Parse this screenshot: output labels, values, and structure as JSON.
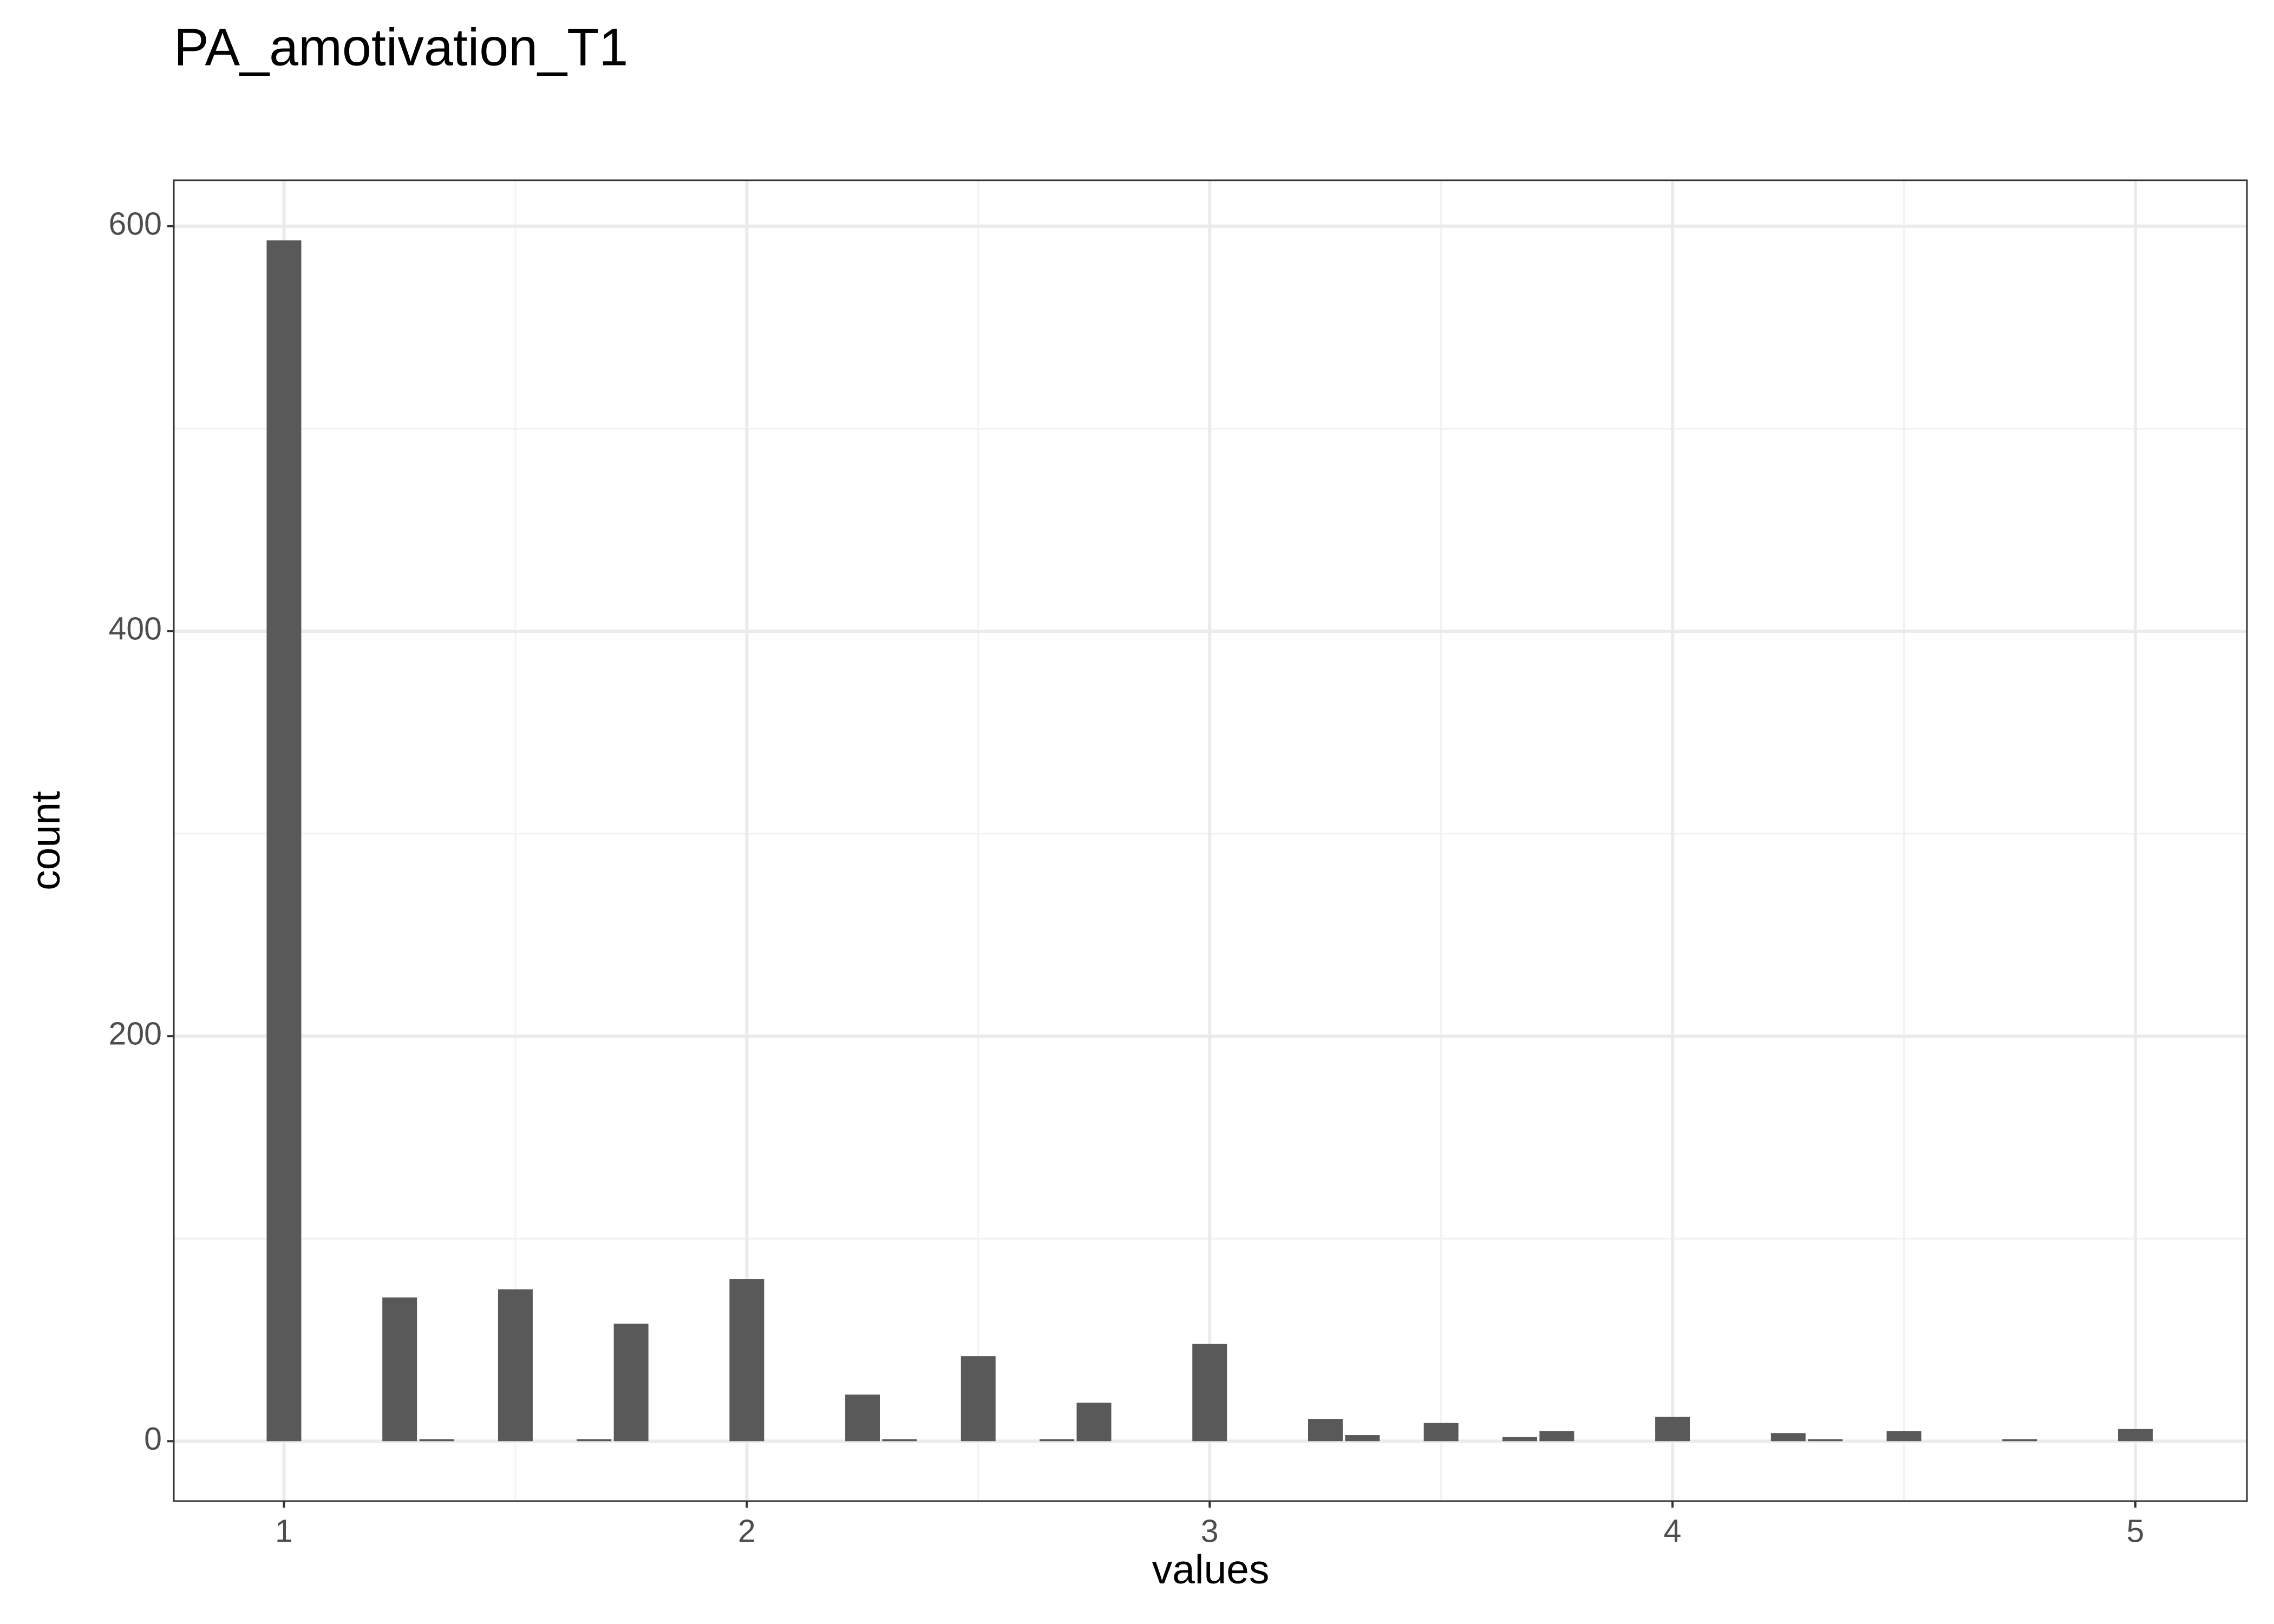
{
  "chart_data": {
    "type": "bar",
    "title": "PA_amotivation_T1",
    "x_label": "values",
    "y_label": "count",
    "x": [
      1,
      1.25,
      1.33,
      1.5,
      1.67,
      1.75,
      2,
      2.25,
      2.33,
      2.5,
      2.67,
      2.75,
      3,
      3.25,
      3.33,
      3.5,
      3.67,
      3.75,
      4,
      4.25,
      4.33,
      4.5,
      4.75,
      5
    ],
    "values": [
      593,
      71,
      1,
      75,
      1,
      58,
      80,
      23,
      1,
      42,
      1,
      19,
      48,
      11,
      3,
      9,
      2,
      5,
      12,
      4,
      1,
      5,
      1,
      6
    ],
    "color": "#595959",
    "xlim": [
      0.762,
      5.241
    ],
    "xticks": [
      1,
      2,
      3,
      4,
      5
    ],
    "ylim": [
      -29.6,
      622.7
    ],
    "yticks": [
      0,
      200,
      400,
      600
    ],
    "grid": true
  }
}
